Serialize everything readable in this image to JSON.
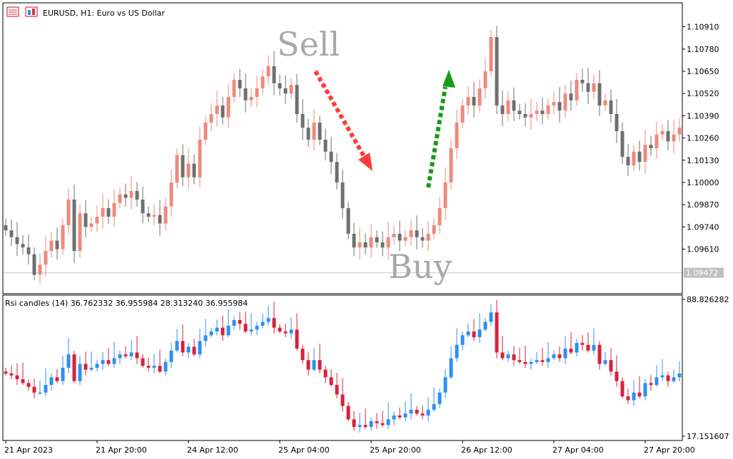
{
  "header": {
    "symbol_title": "EURUSD, H1:  Euro vs US Dollar",
    "indicator_title": "Rsi candles (14) 36.762332 36.955984 28.313240 36.955984"
  },
  "annotations": {
    "sell": "Sell",
    "buy": "Buy"
  },
  "icons": [
    "chart-window-icon",
    "chart-properties-icon"
  ],
  "colors": {
    "bull_main": "#ee8a7b",
    "bear_main": "#6f6f6f",
    "rsi_up": "#2f8ff0",
    "rsi_down": "#d8203c",
    "sell_arrow": "#ff3b3b",
    "buy_arrow": "#1a9b1a",
    "grid": "#c8c8c8",
    "frame": "#000000"
  },
  "chart_data": [
    {
      "type": "candlestick",
      "name": "price",
      "ylim": [
        1.0935,
        1.1105
      ],
      "y_ticks": [
        "1.10910",
        "1.10780",
        "1.10650",
        "1.10520",
        "1.10390",
        "1.10260",
        "1.10130",
        "1.10000",
        "1.09870",
        "1.09740",
        "1.09610"
      ],
      "current_price_label": "1.09472",
      "current_price": 1.09472,
      "x_labels": [
        "21 Apr 2023",
        "21 Apr 20:00",
        "24 Apr 12:00",
        "25 Apr 04:00",
        "25 Apr 20:00",
        "26 Apr 12:00",
        "27 Apr 04:00",
        "27 Apr 20:00"
      ],
      "x_label_index": [
        0,
        16,
        32,
        48,
        64,
        80,
        96,
        112
      ],
      "closes": [
        1.0972,
        1.0968,
        1.0964,
        1.0962,
        1.0958,
        1.0946,
        1.0952,
        1.096,
        1.0966,
        1.0961,
        1.0975,
        1.099,
        1.096,
        1.0982,
        1.0974,
        1.0976,
        1.098,
        1.0985,
        1.098,
        1.0988,
        1.0993,
        1.0991,
        1.0995,
        1.099,
        1.0982,
        1.098,
        1.0981,
        1.0976,
        1.0986,
        1.1,
        1.1016,
        1.1003,
        1.1011,
        1.1003,
        1.1025,
        1.1035,
        1.104,
        1.1045,
        1.1038,
        1.105,
        1.106,
        1.1055,
        1.1048,
        1.105,
        1.1055,
        1.1062,
        1.1068,
        1.1058,
        1.1055,
        1.1052,
        1.1057,
        1.104,
        1.1032,
        1.1025,
        1.1035,
        1.1025,
        1.1018,
        1.1012,
        1.1,
        1.0985,
        1.097,
        1.0962,
        1.0965,
        1.0962,
        1.0968,
        1.0965,
        1.0962,
        1.0968,
        1.097,
        1.0966,
        1.0968,
        1.0972,
        1.0968,
        1.0966,
        1.097,
        1.0975,
        1.0985,
        1.1,
        1.102,
        1.1035,
        1.1045,
        1.105,
        1.1045,
        1.1055,
        1.1065,
        1.1085,
        1.1045,
        1.104,
        1.1048,
        1.1042,
        1.104,
        1.1038,
        1.104,
        1.1042,
        1.104,
        1.1045,
        1.1047,
        1.1042,
        1.1052,
        1.1048,
        1.106,
        1.1058,
        1.1053,
        1.1058,
        1.1045,
        1.1048,
        1.104,
        1.103,
        1.1015,
        1.101,
        1.1018,
        1.1012,
        1.1022,
        1.102,
        1.1028,
        1.103,
        1.1024,
        1.1028,
        1.1032
      ]
    },
    {
      "type": "candlestick",
      "name": "Rsi candles (14)",
      "ylim": [
        17.151607,
        88.826282
      ],
      "y_ticks": [
        "88.826282",
        "17.151607"
      ],
      "values": [
        50,
        49,
        47,
        45,
        43,
        40,
        40,
        44,
        48,
        46,
        53,
        60,
        46,
        55,
        52,
        53,
        55,
        57,
        55,
        58,
        60,
        59,
        61,
        58,
        54,
        53,
        54,
        51,
        56,
        62,
        67,
        61,
        64,
        60,
        67,
        70,
        72,
        74,
        70,
        75,
        78,
        76,
        72,
        73,
        75,
        77,
        79,
        74,
        72,
        71,
        73,
        63,
        57,
        52,
        57,
        52,
        48,
        44,
        39,
        33,
        26,
        22,
        23,
        22,
        25,
        24,
        23,
        26,
        28,
        27,
        29,
        31,
        29,
        28,
        31,
        34,
        40,
        48,
        58,
        65,
        70,
        72,
        69,
        73,
        77,
        82,
        61,
        58,
        60,
        57,
        56,
        55,
        56,
        57,
        56,
        58,
        60,
        58,
        63,
        61,
        66,
        65,
        62,
        65,
        55,
        57,
        51,
        46,
        38,
        36,
        40,
        38,
        45,
        44,
        48,
        49,
        46,
        48,
        50
      ]
    }
  ]
}
